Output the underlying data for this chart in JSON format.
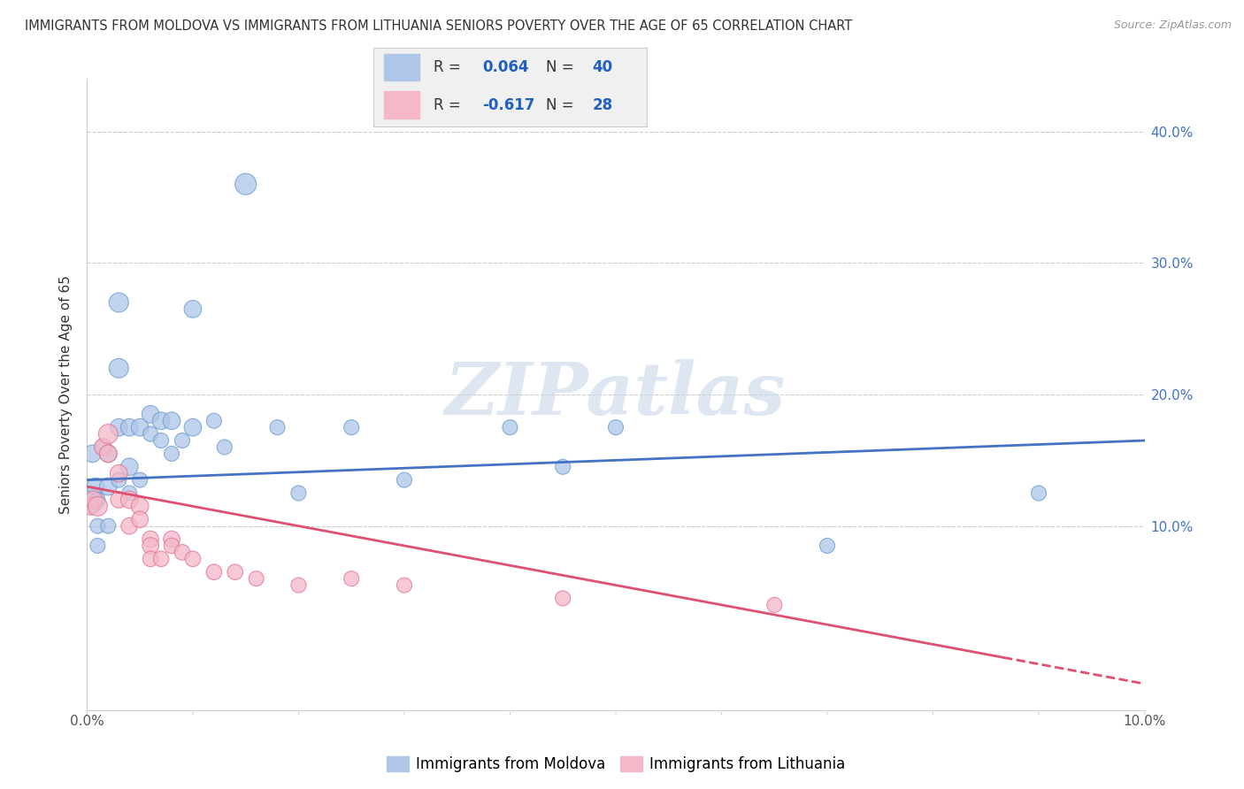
{
  "title": "IMMIGRANTS FROM MOLDOVA VS IMMIGRANTS FROM LITHUANIA SENIORS POVERTY OVER THE AGE OF 65 CORRELATION CHART",
  "source": "Source: ZipAtlas.com",
  "ylabel": "Seniors Poverty Over the Age of 65",
  "xlim": [
    0.0,
    0.1
  ],
  "ylim": [
    -0.04,
    0.44
  ],
  "moldova_color": "#aec6e8",
  "moldova_edge_color": "#6699cc",
  "moldova_line_color": "#4472c4",
  "lithuania_color": "#f4b8c8",
  "lithuania_edge_color": "#e07090",
  "lithuania_line_color": "#e05070",
  "moldova_R": 0.064,
  "moldova_N": 40,
  "lithuania_R": -0.617,
  "lithuania_N": 28,
  "legend_value_color": "#2060c0",
  "watermark_text": "ZIPatlas",
  "watermark_color": "#c8d8e8",
  "moldova_x": [
    0.0003,
    0.0005,
    0.0008,
    0.001,
    0.001,
    0.001,
    0.0015,
    0.002,
    0.002,
    0.002,
    0.003,
    0.003,
    0.003,
    0.003,
    0.004,
    0.004,
    0.004,
    0.005,
    0.005,
    0.006,
    0.006,
    0.007,
    0.007,
    0.008,
    0.008,
    0.009,
    0.01,
    0.01,
    0.012,
    0.013,
    0.015,
    0.018,
    0.02,
    0.025,
    0.03,
    0.04,
    0.045,
    0.05,
    0.07,
    0.09
  ],
  "moldova_y": [
    0.12,
    0.155,
    0.13,
    0.1,
    0.085,
    0.12,
    0.16,
    0.155,
    0.13,
    0.1,
    0.27,
    0.22,
    0.175,
    0.135,
    0.175,
    0.145,
    0.125,
    0.175,
    0.135,
    0.185,
    0.17,
    0.18,
    0.165,
    0.18,
    0.155,
    0.165,
    0.175,
    0.265,
    0.18,
    0.16,
    0.36,
    0.175,
    0.125,
    0.175,
    0.135,
    0.175,
    0.145,
    0.175,
    0.085,
    0.125
  ],
  "moldova_sizes": [
    500,
    200,
    200,
    150,
    150,
    150,
    150,
    200,
    200,
    150,
    250,
    250,
    200,
    150,
    200,
    200,
    150,
    200,
    150,
    200,
    150,
    200,
    150,
    200,
    150,
    150,
    200,
    200,
    150,
    150,
    300,
    150,
    150,
    150,
    150,
    150,
    150,
    150,
    150,
    150
  ],
  "lithuania_x": [
    0.0003,
    0.0006,
    0.001,
    0.0015,
    0.002,
    0.002,
    0.003,
    0.003,
    0.004,
    0.004,
    0.005,
    0.005,
    0.006,
    0.006,
    0.006,
    0.007,
    0.008,
    0.008,
    0.009,
    0.01,
    0.012,
    0.014,
    0.016,
    0.02,
    0.025,
    0.03,
    0.045,
    0.065
  ],
  "lithuania_y": [
    0.115,
    0.12,
    0.115,
    0.16,
    0.17,
    0.155,
    0.14,
    0.12,
    0.12,
    0.1,
    0.115,
    0.105,
    0.09,
    0.085,
    0.075,
    0.075,
    0.09,
    0.085,
    0.08,
    0.075,
    0.065,
    0.065,
    0.06,
    0.055,
    0.06,
    0.055,
    0.045,
    0.04
  ],
  "lithuania_sizes": [
    200,
    200,
    250,
    200,
    250,
    200,
    200,
    180,
    200,
    180,
    200,
    180,
    180,
    180,
    160,
    160,
    180,
    160,
    160,
    160,
    160,
    160,
    150,
    150,
    150,
    150,
    150,
    150
  ],
  "background_color": "#ffffff",
  "grid_color": "#cccccc",
  "moldova_intercept": 0.135,
  "moldova_slope": 0.3,
  "lithuania_intercept": 0.13,
  "lithuania_slope": -1.5
}
